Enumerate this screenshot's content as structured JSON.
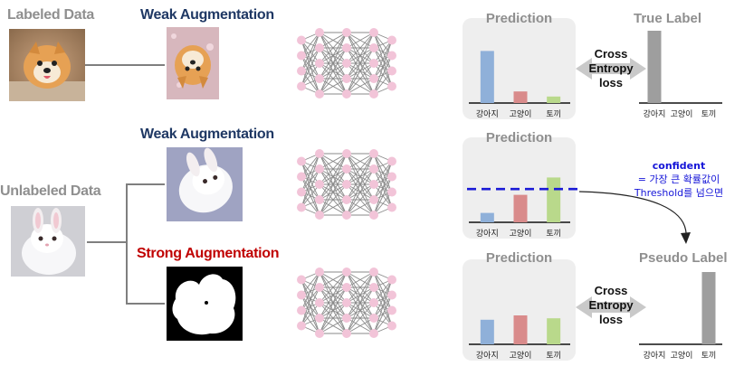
{
  "labels": {
    "labeled_data": "Labeled Data",
    "unlabeled_data": "Unlabeled Data",
    "weak_aug_1": "Weak Augmentation",
    "weak_aug_2": "Weak Augmentation",
    "strong_aug": "Strong Augmentation",
    "prediction_1": "Prediction",
    "prediction_2": "Prediction",
    "prediction_3": "Prediction",
    "true_label": "True Label",
    "pseudo_label": "Pseudo Label",
    "cross_entropy_1": [
      "Cross",
      "Entropy",
      "loss"
    ],
    "cross_entropy_2": [
      "Cross",
      "Entropy",
      "loss"
    ],
    "confident_title": "confident",
    "confident_line2": "= 가장 큰 확률값이",
    "confident_line3": "Threshold를 넘으면"
  },
  "categories": [
    "강아지",
    "고양이",
    "토끼"
  ],
  "colors": {
    "dog": "#8fb0d9",
    "cat": "#d98b8b",
    "rabbit": "#b9d98b",
    "label_bar": "#9e9e9e",
    "threshold": "#1a1ad6",
    "node": "#f2c4d8",
    "edge": "#8a8a8a"
  },
  "chart_data": [
    {
      "type": "bar",
      "name_panel": "prediction_labeled",
      "categories": [
        "강아지",
        "고양이",
        "토끼"
      ],
      "values": [
        0.72,
        0.16,
        0.09
      ],
      "ylim": [
        0,
        1
      ]
    },
    {
      "type": "bar",
      "name_panel": "true_label",
      "categories": [
        "강아지",
        "고양이",
        "토끼"
      ],
      "values": [
        1,
        0,
        0
      ],
      "ylim": [
        0,
        1
      ]
    },
    {
      "type": "bar",
      "name_panel": "prediction_weak",
      "categories": [
        "강아지",
        "고양이",
        "토끼"
      ],
      "values": [
        0.13,
        0.38,
        0.62
      ],
      "threshold": 0.46,
      "ylim": [
        0,
        1
      ]
    },
    {
      "type": "bar",
      "name_panel": "prediction_strong",
      "categories": [
        "강아지",
        "고양이",
        "토끼"
      ],
      "values": [
        0.34,
        0.4,
        0.36
      ],
      "ylim": [
        0,
        1
      ]
    },
    {
      "type": "bar",
      "name_panel": "pseudo_label",
      "categories": [
        "강아지",
        "고양이",
        "토끼"
      ],
      "values": [
        0,
        0,
        1
      ],
      "ylim": [
        0,
        1
      ]
    }
  ]
}
